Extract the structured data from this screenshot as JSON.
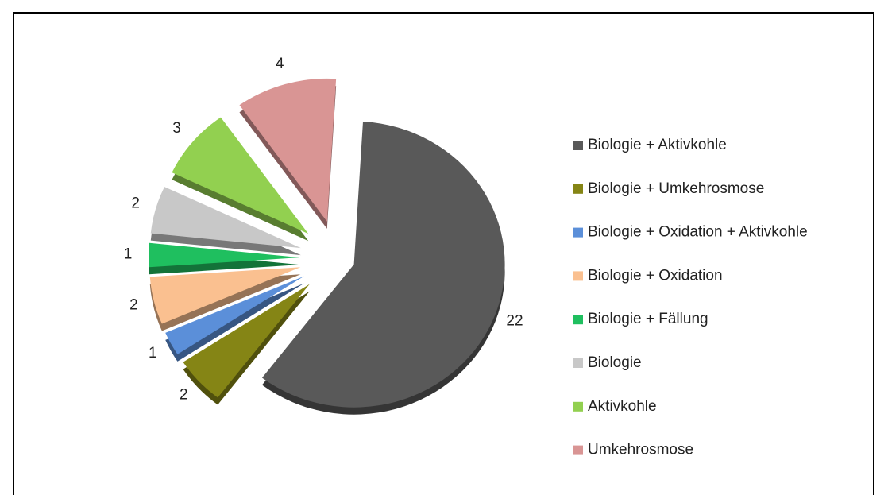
{
  "chart_data": {
    "type": "pie",
    "categories": [
      "Biologie + Aktivkohle",
      "Biologie + Umkehrosmose",
      "Biologie + Oxidation + Aktivkohle",
      "Biologie + Oxidation",
      "Biologie + Fällung",
      "Biologie",
      "Aktivkohle",
      "Umkehrosmose"
    ],
    "values": [
      22,
      2,
      1,
      2,
      1,
      2,
      3,
      4
    ],
    "colors": [
      "#595959",
      "#858515",
      "#5b8fd9",
      "#fac090",
      "#1fbf5f",
      "#c8c8c8",
      "#92d050",
      "#d99594"
    ],
    "legend": "right"
  }
}
